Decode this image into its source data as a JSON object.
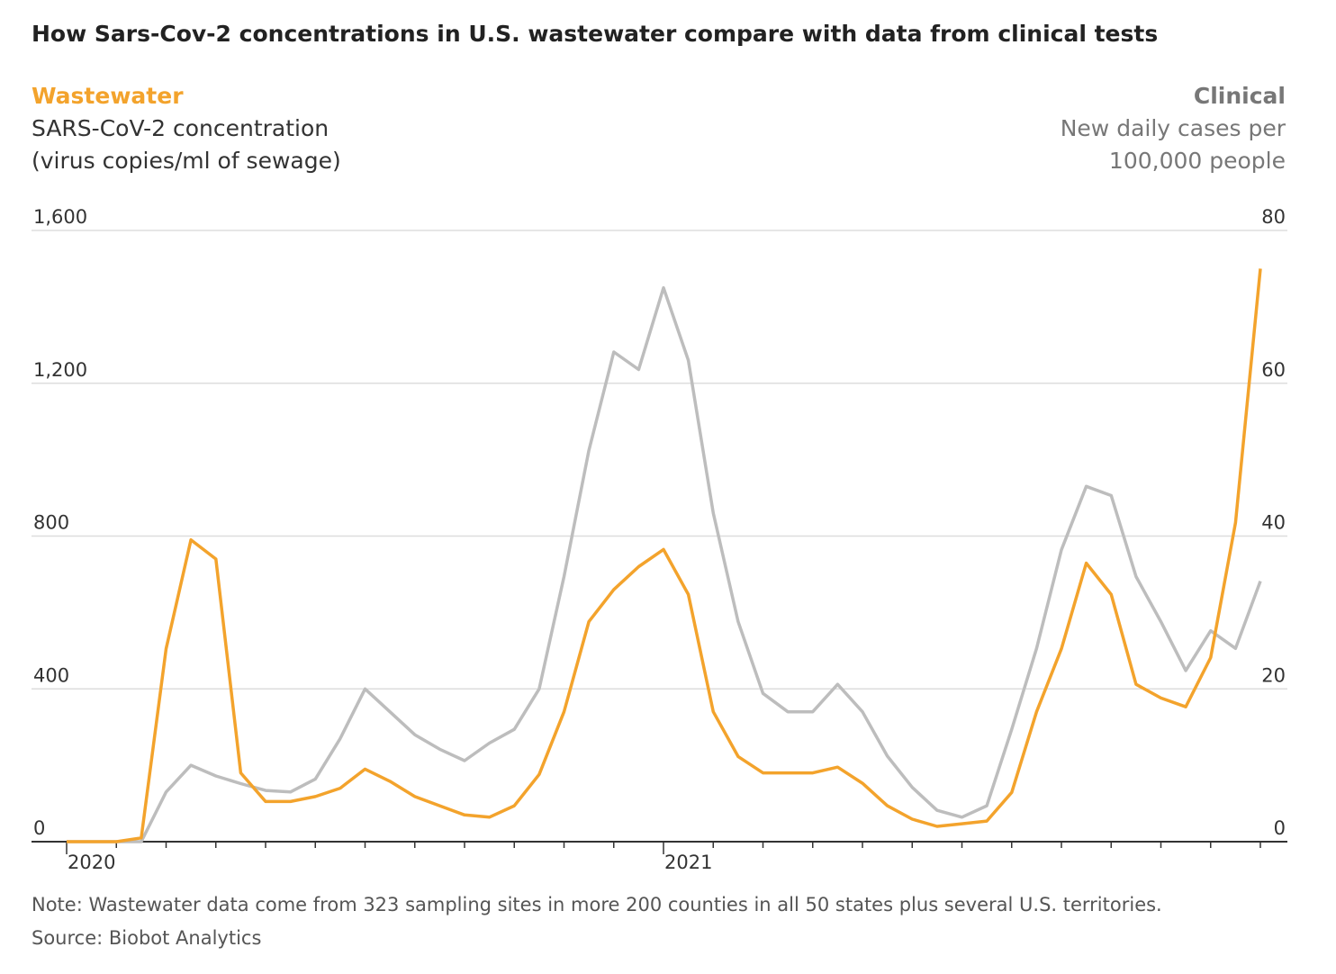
{
  "chart_data": {
    "type": "line",
    "title": "How Sars-Cov-2 concentrations in U.S. wastewater compare with data from clinical tests",
    "ylabel": [
      "SARS-CoV-2 concentration",
      "(virus copies/ml of sewage)"
    ],
    "y2label": [
      "New daily cases per",
      "100,000 people"
    ],
    "note": "Note: Wastewater data come from 323 sampling sites in more 200 counties in all 50 states plus several U.S. territories.",
    "source": "Source: Biobot Analytics",
    "categories": [
      "2020",
      null,
      null,
      null,
      null,
      null,
      null,
      null,
      null,
      null,
      null,
      null,
      null,
      null,
      null,
      null,
      null,
      null,
      null,
      null,
      null,
      null,
      null,
      null,
      "2021",
      null,
      null,
      null,
      null,
      null,
      null,
      null,
      null,
      null,
      null,
      null,
      null,
      null,
      null,
      null,
      null,
      null,
      null,
      null,
      null,
      null,
      null,
      null,
      null
    ],
    "ylim": [
      0,
      1600
    ],
    "yticks": [
      0,
      400,
      800,
      {
        "value": 1200,
        "label": "1,200"
      },
      {
        "value": 1600,
        "label": "1,600"
      }
    ],
    "y2lim": [
      0,
      80
    ],
    "y2ticks": [
      0,
      20,
      40,
      60,
      80
    ],
    "grid": true,
    "series": [
      {
        "name": "Clinical",
        "color": "#bdbdbd",
        "axis": "y2",
        "values": [
          0,
          0,
          0,
          0,
          6.5,
          10,
          8.6,
          7.6,
          6.7,
          6.5,
          8.2,
          13.5,
          20,
          17,
          14,
          12.1,
          10.6,
          12.9,
          14.7,
          20,
          34.7,
          51.2,
          64.1,
          61.8,
          72.5,
          63,
          43,
          28.8,
          19.4,
          17,
          17,
          20.6,
          17,
          11.2,
          7.1,
          4.1,
          3.2,
          4.7,
          14.7,
          25.3,
          38.2,
          46.5,
          45.3,
          34.7,
          28.8,
          22.4,
          27.6,
          25.3,
          34.1
        ]
      },
      {
        "name": "Wastewater",
        "color": "#f3a32c",
        "values": [
          0,
          0,
          0,
          10,
          505,
          790,
          740,
          180,
          105,
          105,
          118,
          140,
          190,
          158,
          118,
          94,
          70,
          64,
          94,
          176,
          340,
          576,
          660,
          720,
          765,
          647,
          340,
          223,
          180,
          180,
          180,
          195,
          153,
          94,
          59,
          40,
          47,
          54,
          129,
          340,
          505,
          729,
          647,
          412,
          376,
          353,
          482,
          835,
          1500
        ]
      }
    ]
  }
}
